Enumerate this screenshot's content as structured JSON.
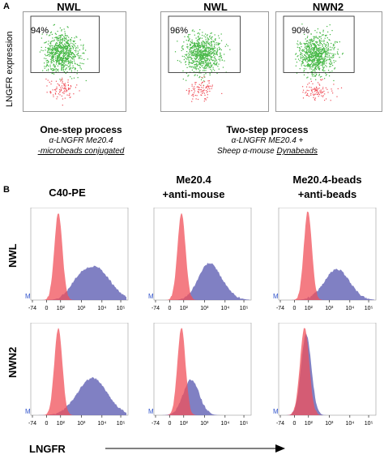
{
  "panelA": {
    "letter": "A",
    "ylabel": "LNGFR expression",
    "plots": [
      {
        "title": "NWL",
        "percent": "94%"
      },
      {
        "title": "NWL",
        "percent": "96%"
      },
      {
        "title": "NWN2",
        "percent": "90%"
      }
    ],
    "left_caption": {
      "bold": "One-step process",
      "line1": "α-LNGFR Me20.4",
      "line2": "-microbeads conjugated"
    },
    "right_caption": {
      "bold": "Two-step process",
      "line1": "α-LNGFR ME20.4 +",
      "line2_pre": "Sheep α-mouse ",
      "line2_u": "Dynabeads"
    }
  },
  "panelB": {
    "letter": "B",
    "col1": "C40-PE",
    "col2_l1": "Me20.4",
    "col2_l2": "+anti-mouse",
    "col3_l1": "Me20.4-beads",
    "col3_l2": "+anti-beads",
    "rows": [
      "NWL",
      "NWN2"
    ],
    "xlabel": "LNGFR",
    "tick_min": "-74",
    "tick_0": "0",
    "tick_2": "10²",
    "tick_3": "10³",
    "tick_4": "10⁴",
    "tick_5": "10⁵",
    "marker": "M"
  },
  "colors": {
    "red": "#f0505a",
    "blue": "#6a6ab8",
    "green": "#3cb43c"
  }
}
